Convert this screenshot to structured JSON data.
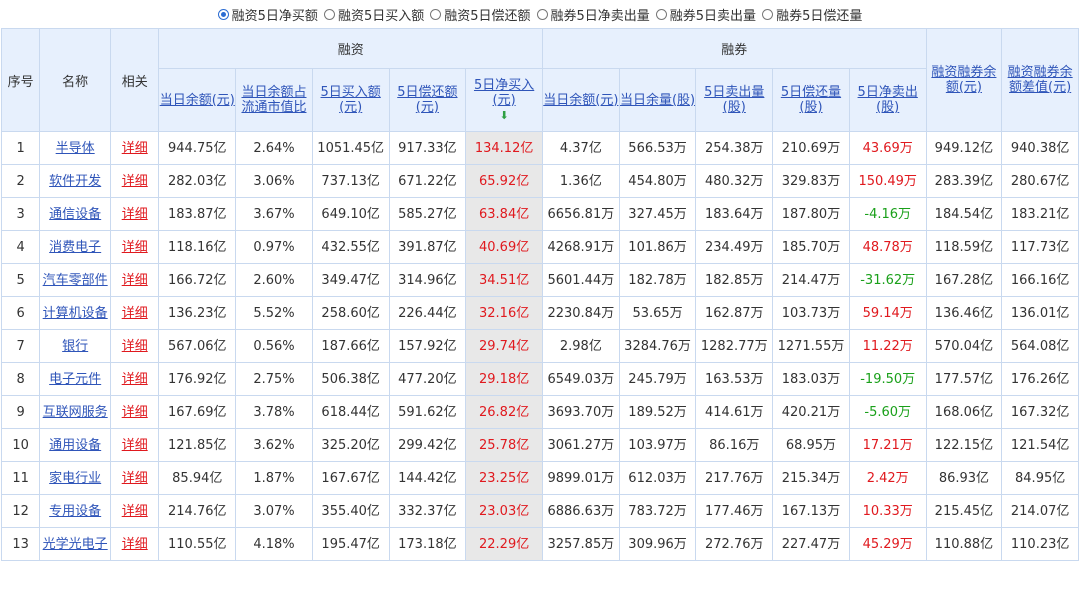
{
  "radio_options": [
    {
      "label": "融资5日净买额",
      "selected": true
    },
    {
      "label": "融资5日买入额",
      "selected": false
    },
    {
      "label": "融资5日偿还额",
      "selected": false
    },
    {
      "label": "融券5日净卖出量",
      "selected": false
    },
    {
      "label": "融券5日卖出量",
      "selected": false
    },
    {
      "label": "融券5日偿还量",
      "selected": false
    }
  ],
  "headers": {
    "index": "序号",
    "name": "名称",
    "related": "相关",
    "group_margin": "融资",
    "group_short": "融券",
    "total_balance": "融资融券余额(元)",
    "balance_diff": "融资融券余额差值(元)",
    "margin_cols": [
      "当日余额(元)",
      "当日余额占流通市值比",
      "5日买入额(元)",
      "5日偿还额(元)",
      "5日净买入(元)"
    ],
    "short_cols": [
      "当日余额(元)",
      "当日余量(股)",
      "5日卖出量(股)",
      "5日偿还量(股)",
      "5日净卖出(股)"
    ]
  },
  "colors": {
    "header_bg": "#e7f0fd",
    "link": "#2f55b9",
    "up": "#e0191e",
    "down": "#1aa01a",
    "sorted_col": "#e8e8e8"
  },
  "rows": [
    {
      "idx": "1",
      "name": "半导体",
      "detail": "详细",
      "v": [
        "944.75亿",
        "2.64%",
        "1051.45亿",
        "917.33亿",
        "134.12亿",
        "4.37亿",
        "566.53万",
        "254.38万",
        "210.69万",
        "43.69万",
        "949.12亿",
        "940.38亿"
      ],
      "sign": "up"
    },
    {
      "idx": "2",
      "name": "软件开发",
      "detail": "详细",
      "v": [
        "282.03亿",
        "3.06%",
        "737.13亿",
        "671.22亿",
        "65.92亿",
        "1.36亿",
        "454.80万",
        "480.32万",
        "329.83万",
        "150.49万",
        "283.39亿",
        "280.67亿"
      ],
      "sign": "up"
    },
    {
      "idx": "3",
      "name": "通信设备",
      "detail": "详细",
      "v": [
        "183.87亿",
        "3.67%",
        "649.10亿",
        "585.27亿",
        "63.84亿",
        "6656.81万",
        "327.45万",
        "183.64万",
        "187.80万",
        "-4.16万",
        "184.54亿",
        "183.21亿"
      ],
      "sign": "down"
    },
    {
      "idx": "4",
      "name": "消费电子",
      "detail": "详细",
      "v": [
        "118.16亿",
        "0.97%",
        "432.55亿",
        "391.87亿",
        "40.69亿",
        "4268.91万",
        "101.86万",
        "234.49万",
        "185.70万",
        "48.78万",
        "118.59亿",
        "117.73亿"
      ],
      "sign": "up"
    },
    {
      "idx": "5",
      "name": "汽车零部件",
      "detail": "详细",
      "v": [
        "166.72亿",
        "2.60%",
        "349.47亿",
        "314.96亿",
        "34.51亿",
        "5601.44万",
        "182.78万",
        "182.85万",
        "214.47万",
        "-31.62万",
        "167.28亿",
        "166.16亿"
      ],
      "sign": "down"
    },
    {
      "idx": "6",
      "name": "计算机设备",
      "detail": "详细",
      "v": [
        "136.23亿",
        "5.52%",
        "258.60亿",
        "226.44亿",
        "32.16亿",
        "2230.84万",
        "53.65万",
        "162.87万",
        "103.73万",
        "59.14万",
        "136.46亿",
        "136.01亿"
      ],
      "sign": "up"
    },
    {
      "idx": "7",
      "name": "银行",
      "detail": "详细",
      "v": [
        "567.06亿",
        "0.56%",
        "187.66亿",
        "157.92亿",
        "29.74亿",
        "2.98亿",
        "3284.76万",
        "1282.77万",
        "1271.55万",
        "11.22万",
        "570.04亿",
        "564.08亿"
      ],
      "sign": "up"
    },
    {
      "idx": "8",
      "name": "电子元件",
      "detail": "详细",
      "v": [
        "176.92亿",
        "2.75%",
        "506.38亿",
        "477.20亿",
        "29.18亿",
        "6549.03万",
        "245.79万",
        "163.53万",
        "183.03万",
        "-19.50万",
        "177.57亿",
        "176.26亿"
      ],
      "sign": "down"
    },
    {
      "idx": "9",
      "name": "互联网服务",
      "detail": "详细",
      "v": [
        "167.69亿",
        "3.78%",
        "618.44亿",
        "591.62亿",
        "26.82亿",
        "3693.70万",
        "189.52万",
        "414.61万",
        "420.21万",
        "-5.60万",
        "168.06亿",
        "167.32亿"
      ],
      "sign": "down"
    },
    {
      "idx": "10",
      "name": "通用设备",
      "detail": "详细",
      "v": [
        "121.85亿",
        "3.62%",
        "325.20亿",
        "299.42亿",
        "25.78亿",
        "3061.27万",
        "103.97万",
        "86.16万",
        "68.95万",
        "17.21万",
        "122.15亿",
        "121.54亿"
      ],
      "sign": "up"
    },
    {
      "idx": "11",
      "name": "家电行业",
      "detail": "详细",
      "v": [
        "85.94亿",
        "1.87%",
        "167.67亿",
        "144.42亿",
        "23.25亿",
        "9899.01万",
        "612.03万",
        "217.76万",
        "215.34万",
        "2.42万",
        "86.93亿",
        "84.95亿"
      ],
      "sign": "up"
    },
    {
      "idx": "12",
      "name": "专用设备",
      "detail": "详细",
      "v": [
        "214.76亿",
        "3.07%",
        "355.40亿",
        "332.37亿",
        "23.03亿",
        "6886.63万",
        "783.72万",
        "177.46万",
        "167.13万",
        "10.33万",
        "215.45亿",
        "214.07亿"
      ],
      "sign": "up"
    },
    {
      "idx": "13",
      "name": "光学光电子",
      "detail": "详细",
      "v": [
        "110.55亿",
        "4.18%",
        "195.47亿",
        "173.18亿",
        "22.29亿",
        "3257.85万",
        "309.96万",
        "272.76万",
        "227.47万",
        "45.29万",
        "110.88亿",
        "110.23亿"
      ],
      "sign": "up"
    }
  ]
}
